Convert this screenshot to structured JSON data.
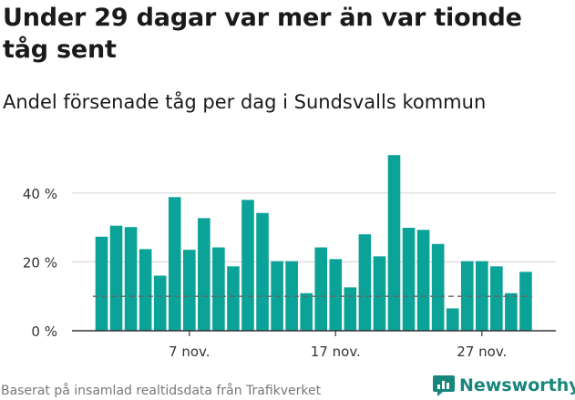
{
  "title": "Under 29 dagar var mer än var tionde tåg sent",
  "subtitle": "Andel försenade tåg per dag i Sundsvalls kommun",
  "source": "Baserat på insamlad realtidsdata från Trafikverket",
  "logo_text": "Newsworthy",
  "colors": {
    "bar": "#0ba297",
    "grid": "#d9d9d9",
    "axis": "#333333",
    "reference_line": "#666666",
    "logo": "#17867b"
  },
  "chart_data": {
    "type": "bar",
    "title": "",
    "xlabel": "",
    "ylabel": "",
    "ylim": [
      0,
      50
    ],
    "yticks": [
      0,
      20,
      40
    ],
    "ytick_labels": [
      "0 %",
      "20 %",
      "40 %"
    ],
    "xtick_labels": [
      {
        "label": "7 nov.",
        "day": 7
      },
      {
        "label": "17 nov.",
        "day": 17
      },
      {
        "label": "27 nov.",
        "day": 27
      }
    ],
    "grid": true,
    "reference_line": {
      "value": 10,
      "style": "dashed"
    },
    "days": [
      1,
      2,
      3,
      4,
      5,
      6,
      7,
      8,
      9,
      10,
      11,
      12,
      13,
      14,
      15,
      16,
      17,
      18,
      19,
      20,
      21,
      22,
      23,
      24,
      25,
      26,
      27,
      28,
      29,
      30
    ],
    "values": [
      27.3,
      30.5,
      30.1,
      23.7,
      16.0,
      38.8,
      23.5,
      32.7,
      24.2,
      18.7,
      38.0,
      34.2,
      20.2,
      20.2,
      10.9,
      24.2,
      20.8,
      12.6,
      28.0,
      21.6,
      51.0,
      29.9,
      29.3,
      25.2,
      6.5,
      20.2,
      20.2,
      18.7,
      10.9,
      17.1
    ]
  }
}
